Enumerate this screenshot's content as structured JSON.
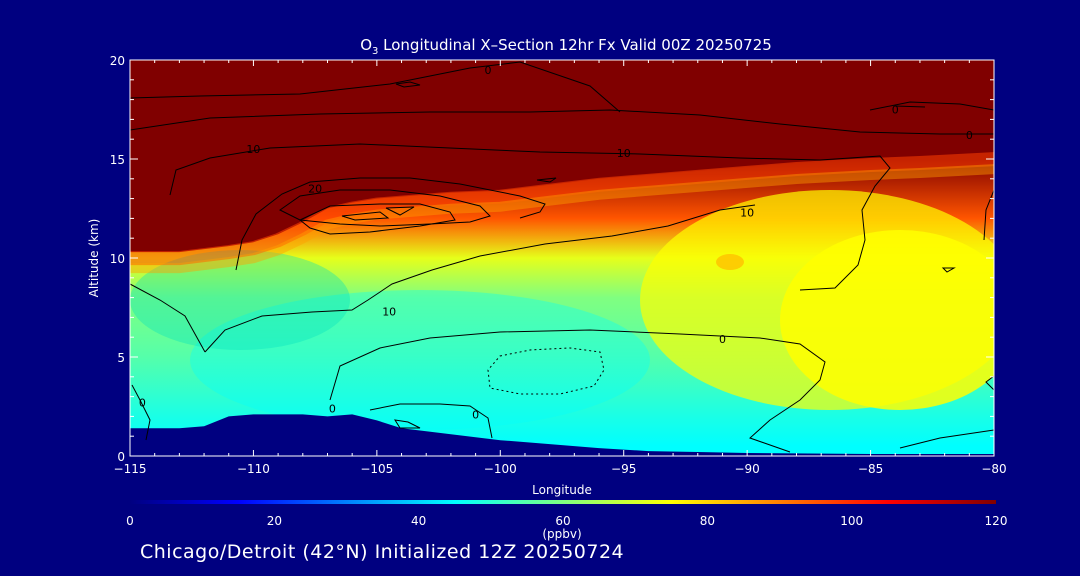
{
  "chart_data": {
    "type": "heatmap",
    "title": {
      "prefix": "O",
      "subscript": "3",
      "rest": " Longitudinal X–Section 12hr  Fx Valid 00Z 20250725"
    },
    "xlabel": "Longitude",
    "ylabel": "Altitude (km)",
    "xlim": [
      -115,
      -80
    ],
    "ylim": [
      0,
      20
    ],
    "x_ticks": [
      -115,
      -110,
      -105,
      -100,
      -95,
      -90,
      -85,
      -80
    ],
    "x_tick_labels": [
      "−115",
      "−110",
      "−105",
      "−100",
      "−95",
      "−90",
      "−85",
      "−80"
    ],
    "y_ticks": [
      0,
      5,
      10,
      15,
      20
    ],
    "y_tick_labels": [
      "0",
      "5",
      "10",
      "15",
      "20"
    ],
    "colorbar": {
      "label": "(ppbv)",
      "min": 0,
      "max": 120,
      "ticks": [
        0,
        20,
        40,
        60,
        80,
        100,
        120
      ],
      "tick_labels": [
        "0",
        "20",
        "40",
        "60",
        "80",
        "100",
        "120"
      ],
      "colormap": [
        "#000080",
        "#0000ff",
        "#0080ff",
        "#00ffff",
        "#80ff80",
        "#ffff00",
        "#ff8000",
        "#ff0000",
        "#800000"
      ]
    },
    "surface_altitude_km": [
      [
        -115,
        1.4
      ],
      [
        -113,
        1.4
      ],
      [
        -112,
        1.5
      ],
      [
        -111,
        2.0
      ],
      [
        -110,
        2.1
      ],
      [
        -108,
        2.1
      ],
      [
        -107,
        2.0
      ],
      [
        -106,
        2.1
      ],
      [
        -105,
        1.8
      ],
      [
        -104,
        1.4
      ],
      [
        -102,
        1.1
      ],
      [
        -100,
        0.8
      ],
      [
        -98,
        0.6
      ],
      [
        -96,
        0.4
      ],
      [
        -94,
        0.25
      ],
      [
        -92,
        0.2
      ],
      [
        -90,
        0.15
      ],
      [
        -85,
        0.1
      ],
      [
        -80,
        0.1
      ]
    ],
    "ozone_ppbv_by_altitude": [
      {
        "altitude_km": 0.5,
        "ozone_ppbv": 45
      },
      {
        "altitude_km": 2,
        "ozone_ppbv": 48
      },
      {
        "altitude_km": 5,
        "ozone_ppbv": 55
      },
      {
        "altitude_km": 8,
        "ozone_ppbv": 60
      },
      {
        "altitude_km": 10,
        "ozone_ppbv": 72
      },
      {
        "altitude_km": 12,
        "ozone_ppbv": 95
      },
      {
        "altitude_km": 15,
        "ozone_ppbv": 120
      },
      {
        "altitude_km": 20,
        "ozone_ppbv": 120
      }
    ],
    "high_ozone_boundary_km": [
      [
        -115,
        10.3
      ],
      [
        -113,
        10.3
      ],
      [
        -111,
        10.6
      ],
      [
        -110,
        10.8
      ],
      [
        -109,
        11.2
      ],
      [
        -108,
        11.8
      ],
      [
        -107,
        12.5
      ],
      [
        -106,
        12.8
      ],
      [
        -105,
        13.0
      ],
      [
        -104,
        13.1
      ],
      [
        -102,
        13.3
      ],
      [
        -100,
        13.4
      ],
      [
        -98,
        13.7
      ],
      [
        -96,
        14.0
      ],
      [
        -94,
        14.2
      ],
      [
        -92,
        14.4
      ],
      [
        -90,
        14.6
      ],
      [
        -88,
        14.8
      ],
      [
        -85,
        15.0
      ],
      [
        -83,
        15.1
      ],
      [
        -80,
        15.3
      ]
    ],
    "contour_labels": [
      {
        "text": "0",
        "x": -100.5,
        "y": 19.5
      },
      {
        "text": "10",
        "x": -110.0,
        "y": 15.5
      },
      {
        "text": "10",
        "x": -95.0,
        "y": 15.3
      },
      {
        "text": "0",
        "x": -84.0,
        "y": 17.5
      },
      {
        "text": "0",
        "x": -81.0,
        "y": 16.2
      },
      {
        "text": "20",
        "x": -107.5,
        "y": 13.5
      },
      {
        "text": "10",
        "x": -90.0,
        "y": 12.3
      },
      {
        "text": "10",
        "x": -104.5,
        "y": 7.3
      },
      {
        "text": "0",
        "x": -91.0,
        "y": 5.9
      },
      {
        "text": "0",
        "x": -114.5,
        "y": 2.7
      },
      {
        "text": "0",
        "x": -106.8,
        "y": 2.4
      },
      {
        "text": "0",
        "x": -101.0,
        "y": 2.1
      }
    ],
    "footer": "Chicago/Detroit (42°N) Initialized 12Z 20250724"
  }
}
